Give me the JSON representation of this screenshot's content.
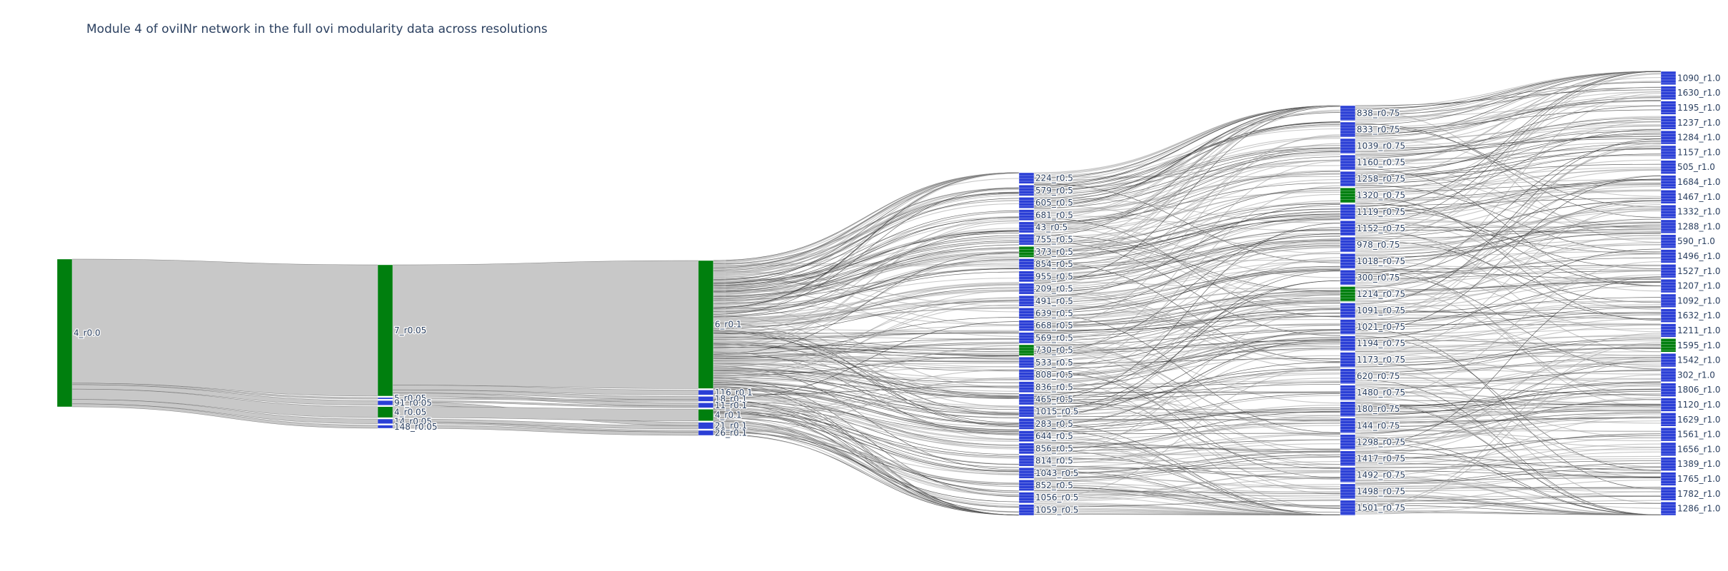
{
  "chart_data": {
    "type": "sankey",
    "title": "Module 4 of oviINr network in the full ovi modularity data across resolutions",
    "colors": {
      "module_node": "#007f0e",
      "other_node": "#2b3fd6",
      "link": "#c8c8c8",
      "link_edge": "#333333",
      "text": "#2a3f5f"
    },
    "columns": [
      {
        "resolution": "0.0",
        "nodes": [
          {
            "label": "4_r0.0",
            "color": "green",
            "size": 100
          }
        ]
      },
      {
        "resolution": "0.05",
        "nodes": [
          {
            "label": "7_r0.05",
            "color": "green",
            "size": 84
          },
          {
            "label": "5_r0.05",
            "color": "blue",
            "size": 1
          },
          {
            "label": "91_r0.05",
            "color": "blue",
            "size": 3
          },
          {
            "label": "4_r0.05",
            "color": "green",
            "size": 7
          },
          {
            "label": "14_r0.05",
            "color": "blue",
            "size": 3
          },
          {
            "label": "148_r0.05",
            "color": "blue",
            "size": 2
          }
        ]
      },
      {
        "resolution": "0.1",
        "nodes": [
          {
            "label": "6_r0.1",
            "color": "green",
            "size": 77
          },
          {
            "label": "116_r0.1",
            "color": "blue",
            "size": 3
          },
          {
            "label": "18_r0.1",
            "color": "blue",
            "size": 3
          },
          {
            "label": "11_r0.1",
            "color": "blue",
            "size": 3
          },
          {
            "label": "4_r0.1",
            "color": "green",
            "size": 7
          },
          {
            "label": "21_r0.1",
            "color": "blue",
            "size": 4
          },
          {
            "label": "26_r0.1",
            "color": "blue",
            "size": 3
          }
        ]
      },
      {
        "resolution": "0.5",
        "nodes": [
          {
            "label": "224_r0.5",
            "color": "blue"
          },
          {
            "label": "579_r0.5",
            "color": "blue"
          },
          {
            "label": "605_r0.5",
            "color": "blue"
          },
          {
            "label": "681_r0.5",
            "color": "blue"
          },
          {
            "label": "43_r0.5",
            "color": "blue"
          },
          {
            "label": "755_r0.5",
            "color": "blue"
          },
          {
            "label": "373_r0.5",
            "color": "green"
          },
          {
            "label": "854_r0.5",
            "color": "blue"
          },
          {
            "label": "955_r0.5",
            "color": "blue"
          },
          {
            "label": "209_r0.5",
            "color": "blue"
          },
          {
            "label": "491_r0.5",
            "color": "blue"
          },
          {
            "label": "639_r0.5",
            "color": "blue"
          },
          {
            "label": "668_r0.5",
            "color": "blue"
          },
          {
            "label": "569_r0.5",
            "color": "blue"
          },
          {
            "label": "730_r0.5",
            "color": "green"
          },
          {
            "label": "533_r0.5",
            "color": "blue"
          },
          {
            "label": "808_r0.5",
            "color": "blue"
          },
          {
            "label": "836_r0.5",
            "color": "blue"
          },
          {
            "label": "465_r0.5",
            "color": "blue"
          },
          {
            "label": "1015_r0.5",
            "color": "blue"
          },
          {
            "label": "283_r0.5",
            "color": "blue"
          },
          {
            "label": "644_r0.5",
            "color": "blue"
          },
          {
            "label": "856_r0.5",
            "color": "blue"
          },
          {
            "label": "814_r0.5",
            "color": "blue"
          },
          {
            "label": "1043_r0.5",
            "color": "blue"
          },
          {
            "label": "852_r0.5",
            "color": "blue"
          },
          {
            "label": "1056_r0.5",
            "color": "blue"
          },
          {
            "label": "1059_r0.5",
            "color": "blue"
          }
        ]
      },
      {
        "resolution": "0.75",
        "nodes": [
          {
            "label": "838_r0.75",
            "color": "blue"
          },
          {
            "label": "833_r0.75",
            "color": "blue"
          },
          {
            "label": "1039_r0.75",
            "color": "blue"
          },
          {
            "label": "1160_r0.75",
            "color": "blue"
          },
          {
            "label": "1258_r0.75",
            "color": "blue"
          },
          {
            "label": "1320_r0.75",
            "color": "green"
          },
          {
            "label": "1119_r0.75",
            "color": "blue"
          },
          {
            "label": "1152_r0.75",
            "color": "blue"
          },
          {
            "label": "978_r0.75",
            "color": "blue"
          },
          {
            "label": "1018_r0.75",
            "color": "blue"
          },
          {
            "label": "300_r0.75",
            "color": "blue"
          },
          {
            "label": "1214_r0.75",
            "color": "green"
          },
          {
            "label": "1091_r0.75",
            "color": "blue"
          },
          {
            "label": "1021_r0.75",
            "color": "blue"
          },
          {
            "label": "1194_r0.75",
            "color": "blue"
          },
          {
            "label": "1173_r0.75",
            "color": "blue"
          },
          {
            "label": "620_r0.75",
            "color": "blue"
          },
          {
            "label": "1480_r0.75",
            "color": "blue"
          },
          {
            "label": "180_r0.75",
            "color": "blue"
          },
          {
            "label": "144_r0.75",
            "color": "blue"
          },
          {
            "label": "1298_r0.75",
            "color": "blue"
          },
          {
            "label": "1417_r0.75",
            "color": "blue"
          },
          {
            "label": "1492_r0.75",
            "color": "blue"
          },
          {
            "label": "1498_r0.75",
            "color": "blue"
          },
          {
            "label": "1501_r0.75",
            "color": "blue"
          }
        ]
      },
      {
        "resolution": "1.0",
        "nodes": [
          {
            "label": "1090_r1.0",
            "color": "blue"
          },
          {
            "label": "1630_r1.0",
            "color": "blue"
          },
          {
            "label": "1195_r1.0",
            "color": "blue"
          },
          {
            "label": "1237_r1.0",
            "color": "blue"
          },
          {
            "label": "1284_r1.0",
            "color": "blue"
          },
          {
            "label": "1157_r1.0",
            "color": "blue"
          },
          {
            "label": "505_r1.0",
            "color": "blue"
          },
          {
            "label": "1684_r1.0",
            "color": "blue"
          },
          {
            "label": "1467_r1.0",
            "color": "blue"
          },
          {
            "label": "1332_r1.0",
            "color": "blue"
          },
          {
            "label": "1288_r1.0",
            "color": "blue"
          },
          {
            "label": "590_r1.0",
            "color": "blue"
          },
          {
            "label": "1496_r1.0",
            "color": "blue"
          },
          {
            "label": "1527_r1.0",
            "color": "blue"
          },
          {
            "label": "1207_r1.0",
            "color": "blue"
          },
          {
            "label": "1092_r1.0",
            "color": "blue"
          },
          {
            "label": "1632_r1.0",
            "color": "blue"
          },
          {
            "label": "1211_r1.0",
            "color": "blue"
          },
          {
            "label": "1595_r1.0",
            "color": "green"
          },
          {
            "label": "1542_r1.0",
            "color": "blue"
          },
          {
            "label": "302_r1.0",
            "color": "blue"
          },
          {
            "label": "1806_r1.0",
            "color": "blue"
          },
          {
            "label": "1120_r1.0",
            "color": "blue"
          },
          {
            "label": "1629_r1.0",
            "color": "blue"
          },
          {
            "label": "1561_r1.0",
            "color": "blue"
          },
          {
            "label": "1656_r1.0",
            "color": "blue"
          },
          {
            "label": "1389_r1.0",
            "color": "blue"
          },
          {
            "label": "1765_r1.0",
            "color": "blue"
          },
          {
            "label": "1782_r1.0",
            "color": "blue"
          },
          {
            "label": "1286_r1.0",
            "color": "blue"
          }
        ]
      }
    ],
    "links": [
      {
        "source": "4_r0.0",
        "target": "7_r0.05",
        "value": 84
      },
      {
        "source": "4_r0.0",
        "target": "5_r0.05",
        "value": 1
      },
      {
        "source": "4_r0.0",
        "target": "91_r0.05",
        "value": 3
      },
      {
        "source": "4_r0.0",
        "target": "4_r0.05",
        "value": 7
      },
      {
        "source": "4_r0.0",
        "target": "14_r0.05",
        "value": 3
      },
      {
        "source": "4_r0.0",
        "target": "148_r0.05",
        "value": 2
      },
      {
        "source": "7_r0.05",
        "target": "6_r0.1",
        "value": 77
      },
      {
        "source": "7_r0.05",
        "target": "116_r0.1",
        "value": 3
      },
      {
        "source": "7_r0.05",
        "target": "18_r0.1",
        "value": 2
      },
      {
        "source": "7_r0.05",
        "target": "11_r0.1",
        "value": 2
      },
      {
        "source": "5_r0.05",
        "target": "18_r0.1",
        "value": 1
      },
      {
        "source": "91_r0.05",
        "target": "11_r0.1",
        "value": 1
      },
      {
        "source": "91_r0.05",
        "target": "21_r0.1",
        "value": 2
      },
      {
        "source": "4_r0.05",
        "target": "4_r0.1",
        "value": 7
      },
      {
        "source": "14_r0.05",
        "target": "21_r0.1",
        "value": 2
      },
      {
        "source": "14_r0.05",
        "target": "26_r0.1",
        "value": 1
      },
      {
        "source": "148_r0.05",
        "target": "26_r0.1",
        "value": 2
      }
    ]
  }
}
